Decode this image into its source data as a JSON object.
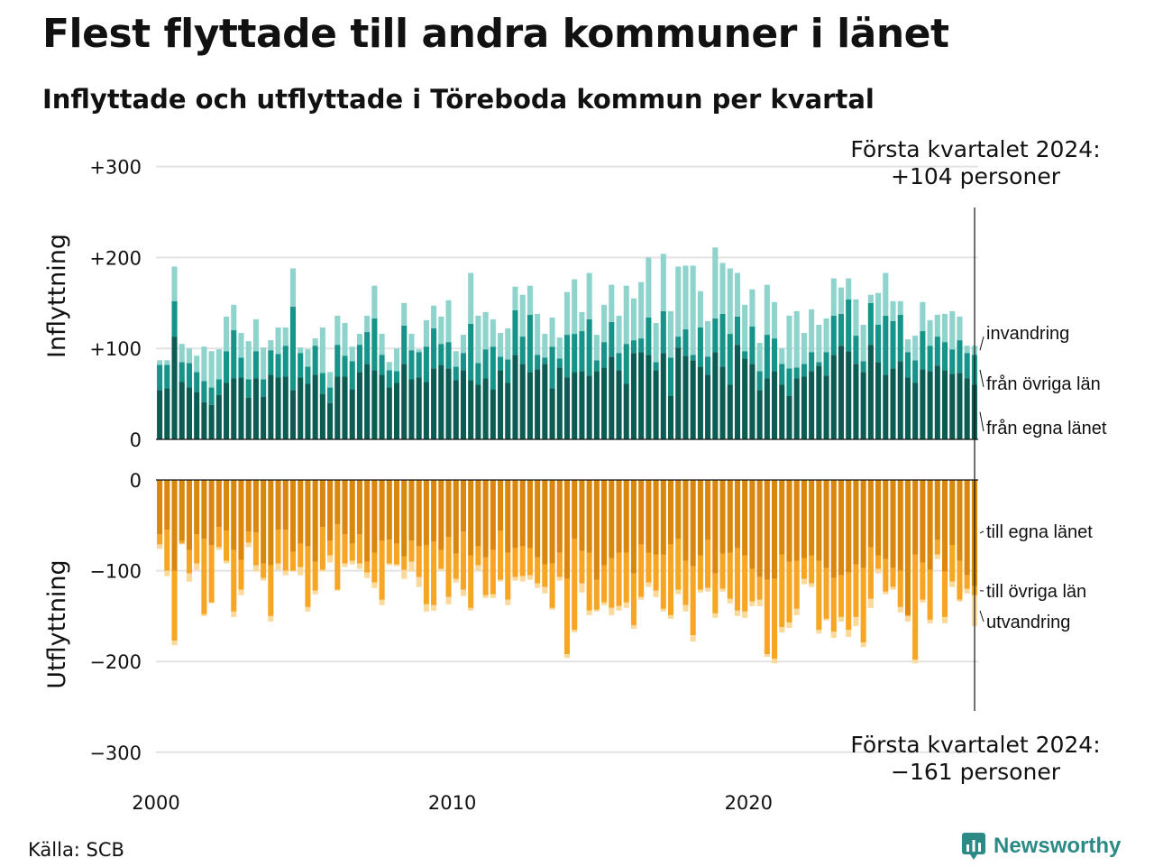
{
  "title": "Flest flyttade till andra kommuner i länet",
  "subtitle": "Inflyttade och utflyttade i Töreboda kommun per kvartal",
  "source": "Källa: SCB",
  "brand": "Newsworthy",
  "colors": {
    "in_egna": "#0d5c53",
    "in_ovriga": "#16948a",
    "in_invandring": "#8fd3cd",
    "ut_egna": "#d9870d",
    "ut_ovriga": "#f6a623",
    "ut_utvandring": "#fbd99b",
    "grid": "#e3e3e3",
    "brand": "#2c8a86"
  },
  "annotations": {
    "top_line1": "Första kvartalet 2024:",
    "top_line2": "+104 personer",
    "bottom_line1": "Första kvartalet 2024:",
    "bottom_line2": "−161 personer"
  },
  "chart_data": [
    {
      "type": "bar",
      "stacked": true,
      "ylabel": "Inflyttning",
      "ylim": [
        0,
        300
      ],
      "yticks": [
        "0",
        "+100",
        "+200",
        "+300"
      ],
      "xticks": [
        "2000",
        "2010",
        "2020"
      ],
      "series": [
        {
          "name": "från egna länet",
          "values": [
            54,
            56,
            113,
            63,
            57,
            52,
            41,
            38,
            49,
            62,
            67,
            68,
            46,
            67,
            47,
            71,
            68,
            69,
            54,
            68,
            61,
            71,
            50,
            40,
            69,
            69,
            55,
            74,
            83,
            76,
            71,
            57,
            62,
            83,
            66,
            68,
            63,
            78,
            82,
            78,
            65,
            76,
            65,
            60,
            67,
            55,
            76,
            62,
            93,
            83,
            74,
            77,
            83,
            56,
            79,
            68,
            74,
            75,
            70,
            75,
            79,
            91,
            76,
            61,
            95,
            96,
            93,
            76,
            95,
            48,
            101,
            92,
            87,
            80,
            71,
            96,
            80,
            60,
            104,
            89,
            83,
            54,
            67,
            75,
            60,
            48,
            67,
            69,
            75,
            81,
            70,
            93,
            103,
            97,
            83,
            74,
            104,
            85,
            71,
            78,
            86,
            68,
            62,
            77,
            75,
            81,
            76,
            72,
            73,
            67,
            60
          ]
        },
        {
          "name": "från övriga län",
          "values": [
            28,
            26,
            39,
            22,
            27,
            22,
            23,
            19,
            17,
            35,
            53,
            22,
            20,
            30,
            19,
            27,
            26,
            34,
            92,
            27,
            19,
            32,
            23,
            17,
            35,
            23,
            31,
            30,
            35,
            57,
            22,
            19,
            13,
            42,
            32,
            28,
            39,
            44,
            23,
            29,
            15,
            19,
            62,
            24,
            32,
            47,
            15,
            26,
            49,
            30,
            63,
            16,
            7,
            46,
            10,
            47,
            42,
            44,
            62,
            12,
            28,
            38,
            19,
            44,
            14,
            15,
            41,
            9,
            46,
            42,
            12,
            29,
            6,
            43,
            20,
            37,
            58,
            56,
            31,
            8,
            41,
            21,
            48,
            36,
            23,
            30,
            12,
            14,
            21,
            4,
            26,
            43,
            35,
            57,
            31,
            12,
            46,
            41,
            65,
            52,
            51,
            28,
            25,
            42,
            28,
            32,
            31,
            27,
            36,
            28,
            33
          ]
        },
        {
          "name": "invandring",
          "values": [
            5,
            5,
            38,
            20,
            16,
            18,
            38,
            40,
            33,
            38,
            28,
            27,
            42,
            35,
            35,
            11,
            29,
            20,
            42,
            6,
            19,
            8,
            50,
            17,
            32,
            36,
            16,
            12,
            18,
            36,
            23,
            9,
            25,
            25,
            18,
            3,
            29,
            25,
            30,
            46,
            17,
            20,
            56,
            52,
            41,
            30,
            26,
            34,
            26,
            46,
            32,
            45,
            26,
            32,
            23,
            47,
            60,
            21,
            51,
            28,
            41,
            41,
            41,
            64,
            46,
            62,
            66,
            43,
            63,
            51,
            77,
            70,
            98,
            40,
            39,
            78,
            56,
            72,
            48,
            51,
            41,
            31,
            55,
            40,
            17,
            58,
            62,
            34,
            47,
            41,
            37,
            41,
            29,
            23,
            40,
            40,
            9,
            35,
            47,
            22,
            15,
            14,
            27,
            32,
            28,
            24,
            31,
            42,
            26,
            8,
            10
          ]
        }
      ]
    },
    {
      "type": "bar",
      "stacked": true,
      "ylabel": "Utflyttning",
      "ylim": [
        -300,
        0
      ],
      "yticks": [
        "0",
        "−100",
        "−200",
        "−300"
      ],
      "xticks": [
        "2000",
        "2010",
        "2020"
      ],
      "series": [
        {
          "name": "till egna länet",
          "values": [
            -60,
            -55,
            -100,
            -67,
            -77,
            -60,
            -65,
            -72,
            -52,
            -56,
            -77,
            -88,
            -57,
            -58,
            -92,
            -94,
            -55,
            -55,
            -79,
            -70,
            -73,
            -90,
            -52,
            -67,
            -49,
            -60,
            -70,
            -60,
            -90,
            -80,
            -67,
            -66,
            -70,
            -84,
            -67,
            -73,
            -72,
            -68,
            -77,
            -63,
            -81,
            -57,
            -83,
            -73,
            -85,
            -77,
            -56,
            -80,
            -75,
            -73,
            -75,
            -85,
            -93,
            -92,
            -80,
            -109,
            -65,
            -78,
            -80,
            -110,
            -94,
            -86,
            -80,
            -80,
            -103,
            -71,
            -80,
            -82,
            -82,
            -71,
            -65,
            -89,
            -95,
            -83,
            -66,
            -103,
            -81,
            -80,
            -75,
            -83,
            -98,
            -107,
            -110,
            -109,
            -82,
            -90,
            -89,
            -86,
            -83,
            -89,
            -97,
            -108,
            -105,
            -102,
            -93,
            -97,
            -74,
            -83,
            -87,
            -97,
            -100,
            -149,
            -82,
            -91,
            -99,
            -66,
            -101,
            -72,
            -89,
            -105,
            -117
          ]
        },
        {
          "name": "till övriga län",
          "values": [
            -11,
            -45,
            -77,
            -3,
            -26,
            -32,
            -83,
            -63,
            -22,
            -33,
            -68,
            -33,
            -12,
            -36,
            -16,
            -56,
            -37,
            -45,
            -21,
            -26,
            -67,
            -32,
            -47,
            -16,
            -72,
            -32,
            -19,
            -32,
            -12,
            -33,
            -65,
            -26,
            -23,
            -15,
            -23,
            -34,
            -65,
            -70,
            -21,
            -66,
            -28,
            -64,
            -58,
            -21,
            -42,
            -49,
            -54,
            -52,
            -32,
            -33,
            -30,
            -29,
            -25,
            -49,
            -27,
            -83,
            -100,
            -36,
            -64,
            -33,
            -41,
            -55,
            -59,
            -55,
            -57,
            -58,
            -33,
            -40,
            -60,
            -78,
            -56,
            -49,
            -76,
            -38,
            -53,
            -44,
            -39,
            -51,
            -69,
            -62,
            -36,
            -25,
            -82,
            -88,
            -80,
            -67,
            -53,
            -23,
            -31,
            -76,
            -56,
            -59,
            -46,
            -63,
            -58,
            -82,
            -57,
            -15,
            -36,
            -21,
            -40,
            -1,
            -116,
            -41,
            -55,
            -16,
            -50,
            -40,
            -43,
            -15,
            -10
          ]
        },
        {
          "name": "utvandring",
          "values": [
            -5,
            -6,
            -5,
            -1,
            -9,
            -7,
            -2,
            -1,
            -3,
            -3,
            -6,
            -6,
            -5,
            -7,
            -3,
            -6,
            -7,
            -5,
            -1,
            -9,
            -5,
            -4,
            -2,
            -8,
            -1,
            -4,
            -4,
            -6,
            -6,
            -6,
            -6,
            -2,
            -2,
            -10,
            -11,
            -11,
            -8,
            -6,
            -2,
            -8,
            -4,
            -7,
            -3,
            -6,
            -3,
            -4,
            -2,
            -6,
            -4,
            -6,
            -5,
            -5,
            -7,
            -2,
            -4,
            -4,
            -3,
            -10,
            -5,
            -2,
            -3,
            -8,
            -5,
            -6,
            -4,
            -3,
            -5,
            -7,
            -3,
            -4,
            -5,
            -7,
            -7,
            -3,
            -4,
            -5,
            -3,
            -5,
            -6,
            -7,
            -5,
            -7,
            -3,
            -5,
            -6,
            -6,
            -7,
            -6,
            -4,
            -4,
            -2,
            -7,
            -5,
            -8,
            -10,
            -5,
            -10,
            -5,
            -3,
            -3,
            -6,
            -6,
            -4,
            -3,
            -4,
            -5,
            -7,
            -6,
            -2,
            -5,
            -34
          ]
        }
      ]
    }
  ]
}
